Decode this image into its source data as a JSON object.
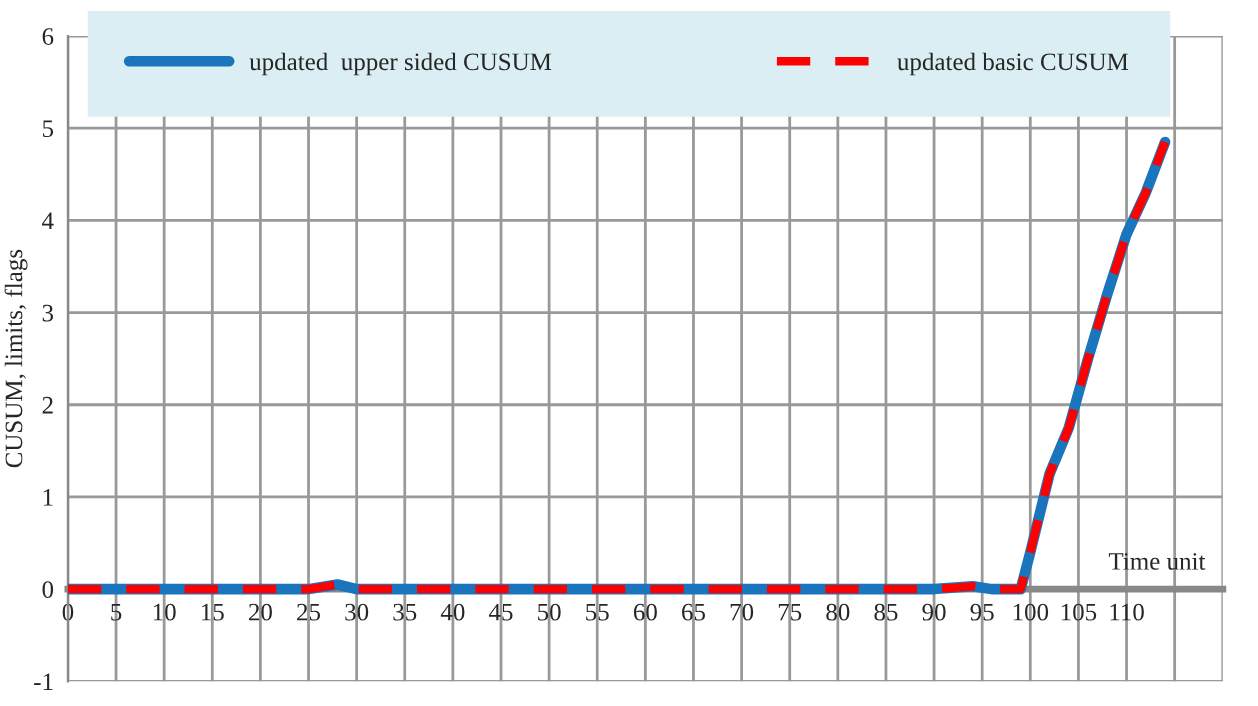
{
  "chart_data": {
    "type": "line",
    "xlabel": "Time unit",
    "ylabel": "CUSUM, limits, flags",
    "xlim": [
      0,
      120
    ],
    "xticks": [
      0,
      5,
      10,
      15,
      20,
      25,
      30,
      35,
      40,
      45,
      50,
      55,
      60,
      65,
      70,
      75,
      80,
      85,
      90,
      95,
      100,
      105,
      110,
      {
        "value": 115,
        "label": null
      },
      {
        "value": 120,
        "label": null
      }
    ],
    "ylim": [
      -1,
      6
    ],
    "yticks": [
      -1,
      0,
      1,
      2,
      3,
      4,
      5,
      6
    ],
    "grid": true,
    "legend": "top",
    "series": [
      {
        "name": "updated  upper sided CUSUM",
        "color": "#1b75bc",
        "line_style": "solid",
        "x": [
          0,
          5,
          10,
          15,
          20,
          25,
          28,
          30,
          35,
          40,
          45,
          50,
          55,
          60,
          65,
          70,
          75,
          80,
          85,
          90,
          94,
          96,
          99,
          100,
          102,
          104,
          106,
          108,
          110,
          112,
          114
        ],
        "values": [
          0,
          0,
          0,
          0,
          0,
          0,
          0.05,
          0,
          0,
          0,
          0,
          0,
          0,
          0,
          0,
          0,
          0,
          0,
          0,
          0,
          0.03,
          0,
          0,
          0.4,
          1.25,
          1.75,
          2.5,
          3.2,
          3.85,
          4.3,
          4.85
        ]
      },
      {
        "name": "updated basic CUSUM",
        "color": "#ff0000",
        "line_style": "dashed",
        "x": [
          0,
          5,
          10,
          15,
          20,
          25,
          28,
          30,
          35,
          40,
          45,
          50,
          55,
          60,
          65,
          70,
          75,
          80,
          85,
          90,
          94,
          96,
          99,
          100,
          102,
          104,
          106,
          108,
          110,
          112,
          114
        ],
        "values": [
          0,
          0,
          0,
          0,
          0,
          0,
          0.05,
          0,
          0,
          0,
          0,
          0,
          0,
          0,
          0,
          0,
          0,
          0,
          0,
          0,
          0.03,
          0,
          0,
          0.4,
          1.25,
          1.75,
          2.5,
          3.2,
          3.85,
          4.3,
          4.85
        ]
      }
    ]
  }
}
